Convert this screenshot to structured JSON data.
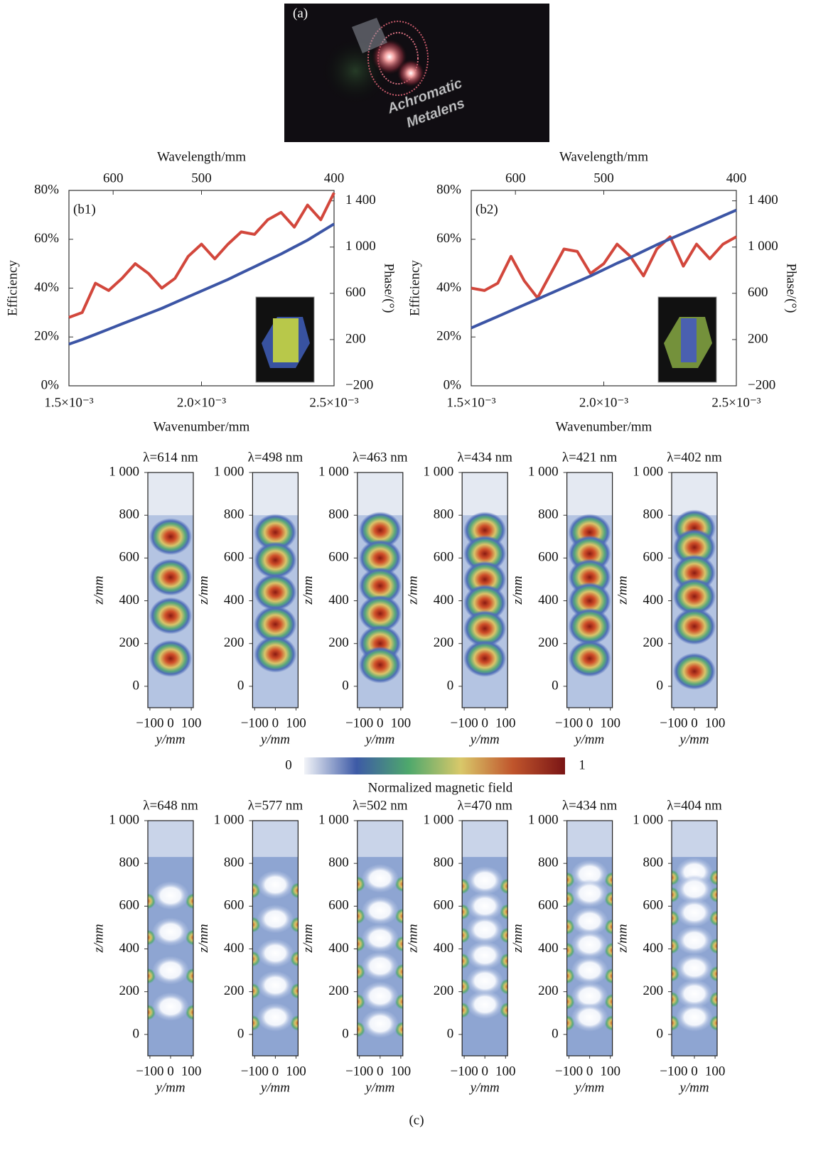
{
  "chart_data": [
    {
      "type": "image",
      "panel_label": "(a)",
      "annotation": [
        "Achromatic",
        "Metalens"
      ]
    },
    {
      "type": "line",
      "panel_label": "(b1)",
      "xlabel": "Wavenumber/mm",
      "x2label": "Wavelength/mm",
      "ylabel": "Efficiency",
      "y2label": "Phase/(°)",
      "x": [
        0.0015,
        0.00155,
        0.0016,
        0.00165,
        0.0017,
        0.00175,
        0.0018,
        0.00185,
        0.0019,
        0.00195,
        0.002,
        0.00205,
        0.0021,
        0.00215,
        0.0022,
        0.00225,
        0.0023,
        0.00235,
        0.0024,
        0.00245,
        0.0025
      ],
      "xlim": [
        0.0015,
        0.0025
      ],
      "xticks": [
        {
          "value": 0.0015,
          "label": "1.5×10⁻³"
        },
        {
          "value": 0.002,
          "label": "2.0×10⁻³"
        },
        {
          "value": 0.0025,
          "label": "2.5×10⁻³"
        }
      ],
      "x2scale": "reciprocal",
      "x2lim": [
        666.7,
        400
      ],
      "x2ticks": [
        600,
        500,
        400
      ],
      "ylim": [
        0,
        80
      ],
      "yticks": [
        {
          "value": 0,
          "label": "0%"
        },
        {
          "value": 20,
          "label": "20%"
        },
        {
          "value": 40,
          "label": "40%"
        },
        {
          "value": 60,
          "label": "60%"
        },
        {
          "value": 80,
          "label": "80%"
        }
      ],
      "y2lim": [
        -200,
        1490
      ],
      "y2ticks": [
        {
          "value": -200,
          "label": "−200"
        },
        200,
        600,
        {
          "value": 1000,
          "label": "1 000"
        },
        {
          "value": 1400,
          "label": "1 400"
        }
      ],
      "series": [
        {
          "color": "#d2473c",
          "values": [
            28,
            30,
            42,
            39,
            44,
            50,
            46,
            40,
            44,
            53,
            58,
            52,
            58,
            63,
            62,
            68,
            71,
            65,
            74,
            68,
            79
          ]
        },
        {
          "color": "#3c55a5",
          "axis": "y2",
          "values": [
            160,
            200,
            245,
            290,
            335,
            380,
            425,
            470,
            520,
            570,
            620,
            670,
            720,
            775,
            830,
            885,
            940,
            1000,
            1060,
            1130,
            1200
          ]
        }
      ]
    },
    {
      "type": "line",
      "panel_label": "(b2)",
      "xlabel": "Wavenumber/mm",
      "x2label": "Wavelength/mm",
      "ylabel": "Efficiency",
      "y2label": "Phase/(°)",
      "x": [
        0.0015,
        0.00155,
        0.0016,
        0.00165,
        0.0017,
        0.00175,
        0.0018,
        0.00185,
        0.0019,
        0.00195,
        0.002,
        0.00205,
        0.0021,
        0.00215,
        0.0022,
        0.00225,
        0.0023,
        0.00235,
        0.0024,
        0.00245,
        0.0025
      ],
      "xlim": [
        0.0015,
        0.0025
      ],
      "xticks": [
        {
          "value": 0.0015,
          "label": "1.5×10⁻³"
        },
        {
          "value": 0.002,
          "label": "2.0×10⁻³"
        },
        {
          "value": 0.0025,
          "label": "2.5×10⁻³"
        }
      ],
      "x2scale": "reciprocal",
      "x2lim": [
        666.7,
        400
      ],
      "x2ticks": [
        600,
        500,
        400
      ],
      "ylim": [
        0,
        80
      ],
      "yticks": [
        {
          "value": 0,
          "label": "0%"
        },
        {
          "value": 20,
          "label": "20%"
        },
        {
          "value": 40,
          "label": "40%"
        },
        {
          "value": 60,
          "label": "60%"
        },
        {
          "value": 80,
          "label": "80%"
        }
      ],
      "y2lim": [
        -200,
        1490
      ],
      "y2ticks": [
        {
          "value": -200,
          "label": "−200"
        },
        200,
        600,
        {
          "value": 1000,
          "label": "1 000"
        },
        {
          "value": 1400,
          "label": "1 400"
        }
      ],
      "series": [
        {
          "color": "#d2473c",
          "values": [
            40,
            39,
            42,
            53,
            43,
            36,
            46,
            56,
            55,
            46,
            50,
            58,
            53,
            45,
            56,
            61,
            49,
            58,
            52,
            58,
            61
          ]
        },
        {
          "color": "#3c55a5",
          "axis": "y2",
          "values": [
            300,
            350,
            400,
            450,
            500,
            550,
            600,
            650,
            700,
            750,
            805,
            860,
            910,
            965,
            1020,
            1070,
            1120,
            1170,
            1220,
            1270,
            1320
          ]
        }
      ]
    },
    {
      "type": "heatmap",
      "mode": "peaks",
      "title": "λ=614 nm",
      "xlabel": "y/mm",
      "ylabel": "z/mm",
      "xlim": [
        -110,
        110
      ],
      "xticks": [
        {
          "value": -100,
          "label": "−100"
        },
        0,
        100
      ],
      "ylim": [
        -100,
        1000
      ],
      "yticks": [
        0,
        200,
        400,
        600,
        800,
        {
          "value": 1000,
          "label": "1 000"
        }
      ],
      "hotspots_z": [
        700,
        510,
        330,
        130
      ]
    },
    {
      "type": "heatmap",
      "mode": "peaks",
      "title": "λ=498 nm",
      "xlabel": "y/mm",
      "ylabel": "z/mm",
      "xlim": [
        -110,
        110
      ],
      "xticks": [
        {
          "value": -100,
          "label": "−100"
        },
        0,
        100
      ],
      "ylim": [
        -100,
        1000
      ],
      "yticks": [
        0,
        200,
        400,
        600,
        800,
        {
          "value": 1000,
          "label": "1 000"
        }
      ],
      "hotspots_z": [
        720,
        590,
        440,
        290,
        150
      ]
    },
    {
      "type": "heatmap",
      "mode": "peaks",
      "title": "λ=463 nm",
      "xlabel": "y/mm",
      "ylabel": "z/mm",
      "xlim": [
        -110,
        110
      ],
      "xticks": [
        {
          "value": -100,
          "label": "−100"
        },
        0,
        100
      ],
      "ylim": [
        -100,
        1000
      ],
      "yticks": [
        0,
        200,
        400,
        600,
        800,
        {
          "value": 1000,
          "label": "1 000"
        }
      ],
      "hotspots_z": [
        730,
        600,
        470,
        340,
        200,
        100
      ]
    },
    {
      "type": "heatmap",
      "mode": "peaks",
      "title": "λ=434 nm",
      "xlabel": "y/mm",
      "ylabel": "z/mm",
      "xlim": [
        -110,
        110
      ],
      "xticks": [
        {
          "value": -100,
          "label": "−100"
        },
        0,
        100
      ],
      "ylim": [
        -100,
        1000
      ],
      "yticks": [
        0,
        200,
        400,
        600,
        800,
        {
          "value": 1000,
          "label": "1 000"
        }
      ],
      "hotspots_z": [
        730,
        620,
        500,
        390,
        270,
        130
      ]
    },
    {
      "type": "heatmap",
      "mode": "peaks",
      "title": "λ=421 nm",
      "xlabel": "y/mm",
      "ylabel": "z/mm",
      "xlim": [
        -110,
        110
      ],
      "xticks": [
        {
          "value": -100,
          "label": "−100"
        },
        0,
        100
      ],
      "ylim": [
        -100,
        1000
      ],
      "yticks": [
        0,
        200,
        400,
        600,
        800,
        {
          "value": 1000,
          "label": "1 000"
        }
      ],
      "hotspots_z": [
        720,
        620,
        510,
        400,
        280,
        130
      ]
    },
    {
      "type": "heatmap",
      "mode": "peaks",
      "title": "λ=402 nm",
      "xlabel": "y/mm",
      "ylabel": "z/mm",
      "xlim": [
        -110,
        110
      ],
      "xticks": [
        {
          "value": -100,
          "label": "−100"
        },
        0,
        100
      ],
      "ylim": [
        -100,
        1000
      ],
      "yticks": [
        0,
        200,
        400,
        600,
        800,
        {
          "value": 1000,
          "label": "1 000"
        }
      ],
      "hotspots_z": [
        740,
        650,
        530,
        420,
        280,
        70
      ]
    },
    {
      "type": "colorbar",
      "title": "Normalized magnetic field",
      "ticks": [
        0,
        1
      ],
      "colors": [
        "#f2f4f8",
        "#3d5aa6",
        "#4ea86c",
        "#d9c86a",
        "#c0552c",
        "#7a1515"
      ]
    },
    {
      "type": "heatmap",
      "mode": "nodes",
      "title": "λ=648 nm",
      "xlabel": "y/mm",
      "ylabel": "z/mm",
      "xlim": [
        -110,
        110
      ],
      "xticks": [
        {
          "value": -100,
          "label": "−100"
        },
        0,
        100
      ],
      "ylim": [
        -100,
        1000
      ],
      "yticks": [
        0,
        200,
        400,
        600,
        800,
        {
          "value": 1000,
          "label": "1 000"
        }
      ],
      "hotspots_z": [
        650,
        480,
        300,
        130
      ]
    },
    {
      "type": "heatmap",
      "mode": "nodes",
      "title": "λ=577 nm",
      "xlabel": "y/mm",
      "ylabel": "z/mm",
      "xlim": [
        -110,
        110
      ],
      "xticks": [
        {
          "value": -100,
          "label": "−100"
        },
        0,
        100
      ],
      "ylim": [
        -100,
        1000
      ],
      "yticks": [
        0,
        200,
        400,
        600,
        800,
        {
          "value": 1000,
          "label": "1 000"
        }
      ],
      "hotspots_z": [
        700,
        540,
        380,
        230,
        80
      ]
    },
    {
      "type": "heatmap",
      "mode": "nodes",
      "title": "λ=502 nm",
      "xlabel": "y/mm",
      "ylabel": "z/mm",
      "xlim": [
        -110,
        110
      ],
      "xticks": [
        {
          "value": -100,
          "label": "−100"
        },
        0,
        100
      ],
      "ylim": [
        -100,
        1000
      ],
      "yticks": [
        0,
        200,
        400,
        600,
        800,
        {
          "value": 1000,
          "label": "1 000"
        }
      ],
      "hotspots_z": [
        730,
        580,
        450,
        320,
        180,
        50
      ]
    },
    {
      "type": "heatmap",
      "mode": "nodes",
      "title": "λ=470 nm",
      "xlabel": "y/mm",
      "ylabel": "z/mm",
      "xlim": [
        -110,
        110
      ],
      "xticks": [
        {
          "value": -100,
          "label": "−100"
        },
        0,
        100
      ],
      "ylim": [
        -100,
        1000
      ],
      "yticks": [
        0,
        200,
        400,
        600,
        800,
        {
          "value": 1000,
          "label": "1 000"
        }
      ],
      "hotspots_z": [
        720,
        600,
        490,
        370,
        250,
        140
      ]
    },
    {
      "type": "heatmap",
      "mode": "nodes",
      "title": "λ=434 nm",
      "xlabel": "y/mm",
      "ylabel": "z/mm",
      "xlim": [
        -110,
        110
      ],
      "xticks": [
        {
          "value": -100,
          "label": "−100"
        },
        0,
        100
      ],
      "ylim": [
        -100,
        1000
      ],
      "yticks": [
        0,
        200,
        400,
        600,
        800,
        {
          "value": 1000,
          "label": "1 000"
        }
      ],
      "hotspots_z": [
        750,
        660,
        530,
        420,
        300,
        180,
        80
      ]
    },
    {
      "type": "heatmap",
      "mode": "nodes",
      "title": "λ=404 nm",
      "xlabel": "y/mm",
      "ylabel": "z/mm",
      "xlim": [
        -110,
        110
      ],
      "xticks": [
        {
          "value": -100,
          "label": "−100"
        },
        0,
        100
      ],
      "ylim": [
        -100,
        1000
      ],
      "yticks": [
        0,
        200,
        400,
        600,
        800,
        {
          "value": 1000,
          "label": "1 000"
        }
      ],
      "hotspots_z": [
        760,
        680,
        570,
        440,
        310,
        190,
        80
      ]
    },
    {
      "type": "caption",
      "text": "(c)"
    }
  ]
}
